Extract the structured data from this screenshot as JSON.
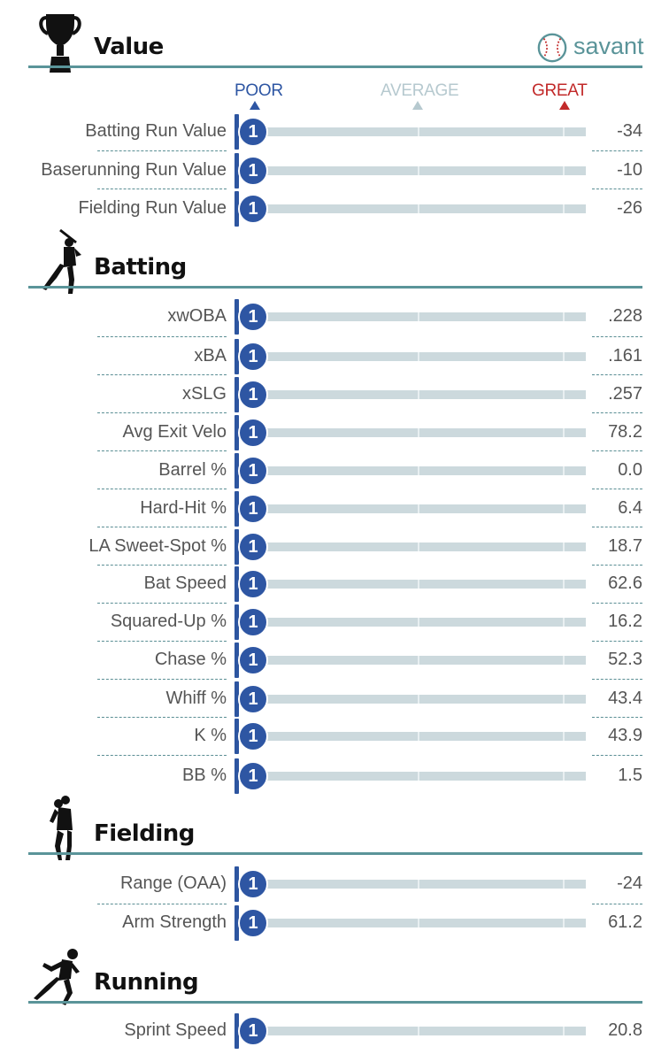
{
  "brand": {
    "name": "savant",
    "icon": "baseball-icon"
  },
  "scale": {
    "poor": "POOR",
    "average": "AVERAGE",
    "great": "GREAT",
    "colors": {
      "poor": "#2e56a3",
      "average": "#b6c9cf",
      "great": "#c22a2a"
    }
  },
  "sections": {
    "value": {
      "title": "Value",
      "icon": "trophy-icon",
      "metrics": [
        {
          "label": "Batting Run Value",
          "value": "-34",
          "percentile": "1"
        },
        {
          "label": "Baserunning Run Value",
          "value": "-10",
          "percentile": "1"
        },
        {
          "label": "Fielding Run Value",
          "value": "-26",
          "percentile": "1"
        }
      ]
    },
    "batting": {
      "title": "Batting",
      "icon": "batter-icon",
      "metrics": [
        {
          "label": "xwOBA",
          "value": ".228",
          "percentile": "1"
        },
        {
          "label": "xBA",
          "value": ".161",
          "percentile": "1"
        },
        {
          "label": "xSLG",
          "value": ".257",
          "percentile": "1"
        },
        {
          "label": "Avg Exit Velo",
          "value": "78.2",
          "percentile": "1"
        },
        {
          "label": "Barrel %",
          "value": "0.0",
          "percentile": "1"
        },
        {
          "label": "Hard-Hit %",
          "value": "6.4",
          "percentile": "1"
        },
        {
          "label": "LA Sweet-Spot %",
          "value": "18.7",
          "percentile": "1"
        },
        {
          "label": "Bat Speed",
          "value": "62.6",
          "percentile": "1"
        },
        {
          "label": "Squared-Up %",
          "value": "16.2",
          "percentile": "1"
        },
        {
          "label": "Chase %",
          "value": "52.3",
          "percentile": "1"
        },
        {
          "label": "Whiff %",
          "value": "43.4",
          "percentile": "1"
        },
        {
          "label": "K %",
          "value": "43.9",
          "percentile": "1"
        },
        {
          "label": "BB %",
          "value": "1.5",
          "percentile": "1"
        }
      ]
    },
    "fielding": {
      "title": "Fielding",
      "icon": "fielder-icon",
      "metrics": [
        {
          "label": "Range (OAA)",
          "value": "-24",
          "percentile": "1"
        },
        {
          "label": "Arm Strength",
          "value": "61.2",
          "percentile": "1"
        }
      ]
    },
    "running": {
      "title": "Running",
      "icon": "runner-icon",
      "metrics": [
        {
          "label": "Sprint Speed",
          "value": "20.8",
          "percentile": "1"
        }
      ]
    }
  }
}
